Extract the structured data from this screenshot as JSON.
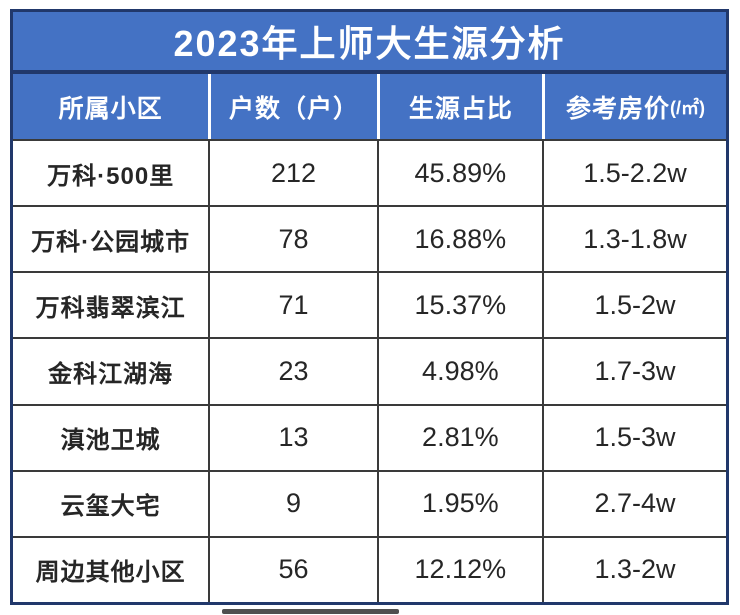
{
  "title": "2023年上师大生源分析",
  "columns": [
    {
      "label": "所属小区"
    },
    {
      "label": "户数（户）"
    },
    {
      "label": "生源占比"
    },
    {
      "label": "参考房价",
      "unit": "(/㎡)"
    }
  ],
  "rows": [
    {
      "name": "万科·500里",
      "households": "212",
      "share": "45.89%",
      "price": "1.5-2.2w"
    },
    {
      "name": "万科·公园城市",
      "households": "78",
      "share": "16.88%",
      "price": "1.3-1.8w"
    },
    {
      "name": "万科翡翠滨江",
      "households": "71",
      "share": "15.37%",
      "price": "1.5-2w"
    },
    {
      "name": "金科江湖海",
      "households": "23",
      "share": "4.98%",
      "price": "1.7-3w"
    },
    {
      "name": "滇池卫城",
      "households": "13",
      "share": "2.81%",
      "price": "1.5-3w"
    },
    {
      "name": "云玺大宅",
      "households": "9",
      "share": "1.95%",
      "price": "2.7-4w"
    },
    {
      "name": "周边其他小区",
      "households": "56",
      "share": "12.12%",
      "price": "1.3-2w"
    }
  ],
  "colors": {
    "header_blue": "#4472c4",
    "border_navy": "#21386b",
    "grid_dark": "#3a3a3a",
    "text_dark": "#262626",
    "text_light": "#ffffff"
  },
  "chart_data": {
    "type": "table",
    "title": "2023年上师大生源分析",
    "columns": [
      "所属小区",
      "户数（户）",
      "生源占比",
      "参考房价(/㎡)"
    ],
    "rows": [
      [
        "万科·500里",
        212,
        "45.89%",
        "1.5-2.2w"
      ],
      [
        "万科·公园城市",
        78,
        "16.88%",
        "1.3-1.8w"
      ],
      [
        "万科翡翠滨江",
        71,
        "15.37%",
        "1.5-2w"
      ],
      [
        "金科江湖海",
        23,
        "4.98%",
        "1.7-3w"
      ],
      [
        "滇池卫城",
        13,
        "2.81%",
        "1.5-3w"
      ],
      [
        "云玺大宅",
        9,
        "1.95%",
        "2.7-4w"
      ],
      [
        "周边其他小区",
        56,
        "12.12%",
        "1.3-2w"
      ]
    ],
    "layout": {
      "title_position": "top",
      "grid": true,
      "header_fill": "#4472c4"
    }
  }
}
